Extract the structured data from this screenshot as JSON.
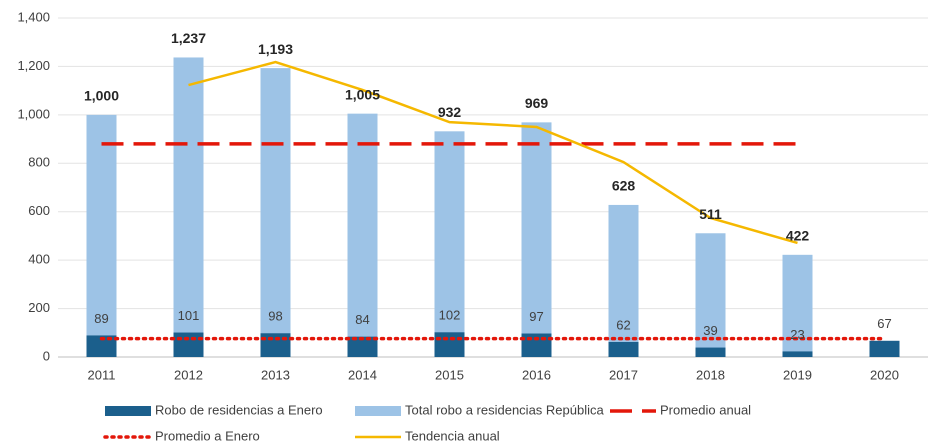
{
  "chart_data": {
    "type": "bar",
    "categories": [
      "2011",
      "2012",
      "2013",
      "2014",
      "2015",
      "2016",
      "2017",
      "2018",
      "2019",
      "2020"
    ],
    "ylim": [
      0,
      1400
    ],
    "yticks": [
      0,
      200,
      400,
      600,
      800,
      {
        "value": 1000,
        "label": "1,000"
      },
      {
        "value": 1200,
        "label": "1,200"
      },
      {
        "value": 1400,
        "label": "1,400"
      }
    ],
    "grid": true,
    "legend": "bottom",
    "series": [
      {
        "name": "Total robo a residencias República",
        "type": "bar",
        "color": "#9dc3e6",
        "values": [
          1000,
          1237,
          1193,
          1005,
          932,
          969,
          628,
          511,
          422,
          null
        ],
        "value_labels": [
          "1,000",
          "1,237",
          "1,193",
          "1,005",
          "932",
          "969",
          "628",
          "511",
          "422",
          null
        ]
      },
      {
        "name": "Robo de residencias a Enero",
        "type": "bar",
        "color": "#1b5f8c",
        "values": [
          89,
          101,
          98,
          84,
          102,
          97,
          62,
          39,
          23,
          67
        ]
      },
      {
        "name": "Promedio anual",
        "type": "line",
        "dash": "dashed",
        "color": "#e3170a",
        "values": [
          880,
          880,
          880,
          880,
          880,
          880,
          880,
          880,
          880,
          null
        ]
      },
      {
        "name": "Promedio a Enero",
        "type": "line",
        "dash": "dotted",
        "color": "#e3170a",
        "values": [
          76,
          76,
          76,
          76,
          76,
          76,
          76,
          76,
          76,
          76
        ]
      },
      {
        "name": "Tendencia anual",
        "type": "line",
        "color": "#f5b800",
        "values": [
          null,
          1123,
          1218,
          1103,
          970,
          950,
          805,
          574,
          471,
          null
        ]
      }
    ]
  }
}
